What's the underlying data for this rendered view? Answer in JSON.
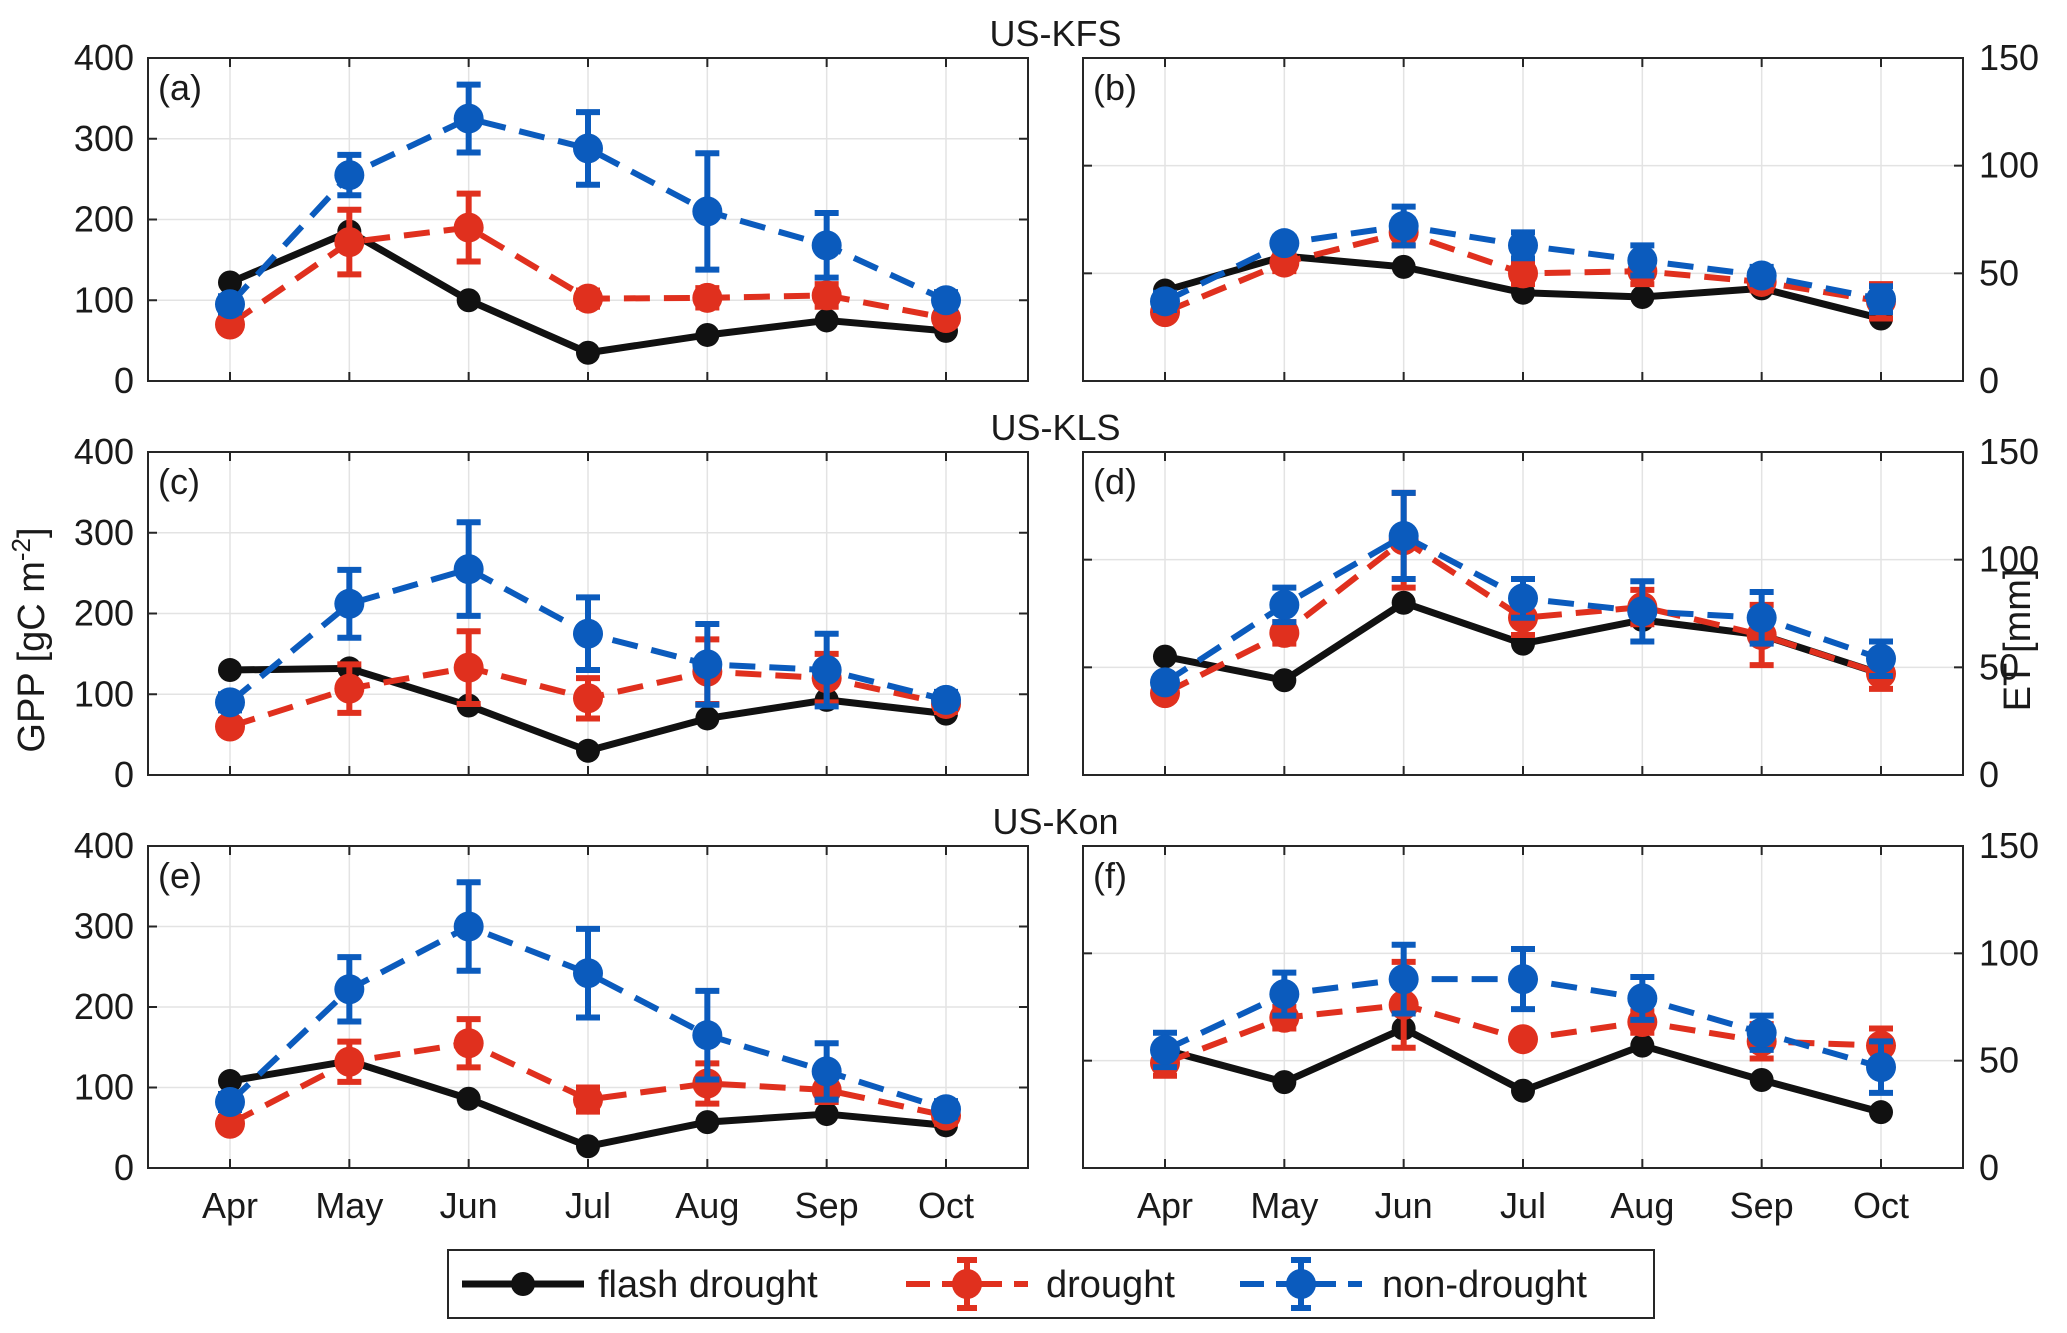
{
  "chart_data": {
    "type": "line",
    "months": [
      "Apr",
      "May",
      "Jun",
      "Jul",
      "Aug",
      "Sep",
      "Oct"
    ],
    "left_ylabel": "GPP  [gC m-2]",
    "left_ylabel_main": "GPP  [gC m",
    "left_ylabel_sup": "-2",
    "left_ylabel_close": "]",
    "right_ylabel": "ET  [mm]",
    "gpp_ylim": [
      0,
      400
    ],
    "gpp_yticks": [
      0,
      100,
      200,
      300,
      400
    ],
    "et_ylim": [
      0,
      150
    ],
    "et_yticks": [
      0,
      50,
      100,
      150
    ],
    "grid": true,
    "legend_position": "bottom-center",
    "colors": {
      "flash": "#111111",
      "drought": "#e0301e",
      "nondrought": "#0b5bbd"
    },
    "legend": {
      "flash": "flash drought",
      "drought": "drought",
      "nondrought": "non-drought"
    },
    "rows": [
      {
        "site": "US-KFS",
        "gpp": {
          "label": "(a)",
          "series": {
            "flash": {
              "values": [
                122,
                185,
                100,
                35,
                57,
                75,
                62
              ]
            },
            "drought": {
              "values": [
                70,
                172,
                190,
                102,
                103,
                106,
                78
              ],
              "err": [
                8,
                40,
                42,
                10,
                12,
                14,
                8
              ]
            },
            "nondrought": {
              "values": [
                95,
                255,
                325,
                288,
                210,
                168,
                100
              ],
              "err": [
                10,
                25,
                42,
                45,
                72,
                40,
                10
              ]
            }
          }
        },
        "et": {
          "label": "(b)",
          "series": {
            "flash": {
              "values": [
                42,
                58,
                53,
                41,
                39,
                43,
                29
              ]
            },
            "drought": {
              "values": [
                32,
                55,
                69,
                50,
                51,
                46,
                37
              ],
              "err": [
                3,
                4,
                6,
                5,
                6,
                4,
                8
              ]
            },
            "nondrought": {
              "values": [
                37,
                64,
                72,
                63,
                56,
                49,
                38
              ],
              "err": [
                4,
                3,
                9,
                6,
                7,
                4,
                6
              ]
            }
          }
        }
      },
      {
        "site": "US-KLS",
        "gpp": {
          "label": "(c)",
          "series": {
            "flash": {
              "values": [
                130,
                132,
                86,
                30,
                70,
                93,
                76
              ]
            },
            "drought": {
              "values": [
                60,
                107,
                133,
                95,
                128,
                120,
                88
              ],
              "err": [
                8,
                30,
                45,
                25,
                40,
                30,
                10
              ]
            },
            "nondrought": {
              "values": [
                90,
                212,
                255,
                175,
                137,
                130,
                93
              ],
              "err": [
                10,
                42,
                58,
                45,
                50,
                45,
                10
              ]
            }
          }
        },
        "et": {
          "label": "(d)",
          "series": {
            "flash": {
              "values": [
                55,
                44,
                80,
                61,
                72,
                65,
                47
              ]
            },
            "drought": {
              "values": [
                38,
                66,
                109,
                73,
                78,
                65,
                47
              ],
              "err": [
                3,
                5,
                22,
                8,
                8,
                14,
                7
              ]
            },
            "nondrought": {
              "values": [
                43,
                79,
                111,
                82,
                76,
                73,
                54
              ],
              "err": [
                3,
                8,
                20,
                9,
                14,
                12,
                8
              ]
            }
          }
        }
      },
      {
        "site": "US-Kon",
        "gpp": {
          "label": "(e)",
          "series": {
            "flash": {
              "values": [
                108,
                133,
                86,
                27,
                57,
                67,
                53
              ]
            },
            "drought": {
              "values": [
                55,
                132,
                155,
                85,
                105,
                97,
                65
              ],
              "err": [
                8,
                25,
                30,
                15,
                25,
                15,
                10
              ]
            },
            "nondrought": {
              "values": [
                82,
                222,
                300,
                242,
                165,
                120,
                73
              ],
              "err": [
                10,
                40,
                55,
                55,
                55,
                35,
                10
              ]
            }
          }
        },
        "et": {
          "label": "(f)",
          "series": {
            "flash": {
              "values": [
                55,
                40,
                65,
                36,
                57,
                41,
                26
              ]
            },
            "drought": {
              "values": [
                49,
                70,
                76,
                60,
                68,
                59,
                57
              ],
              "err": [
                6,
                5,
                20,
                3,
                5,
                8,
                8
              ]
            },
            "nondrought": {
              "values": [
                55,
                81,
                88,
                88,
                79,
                63,
                47
              ],
              "err": [
                8,
                10,
                16,
                14,
                10,
                8,
                12
              ]
            }
          }
        }
      }
    ]
  }
}
